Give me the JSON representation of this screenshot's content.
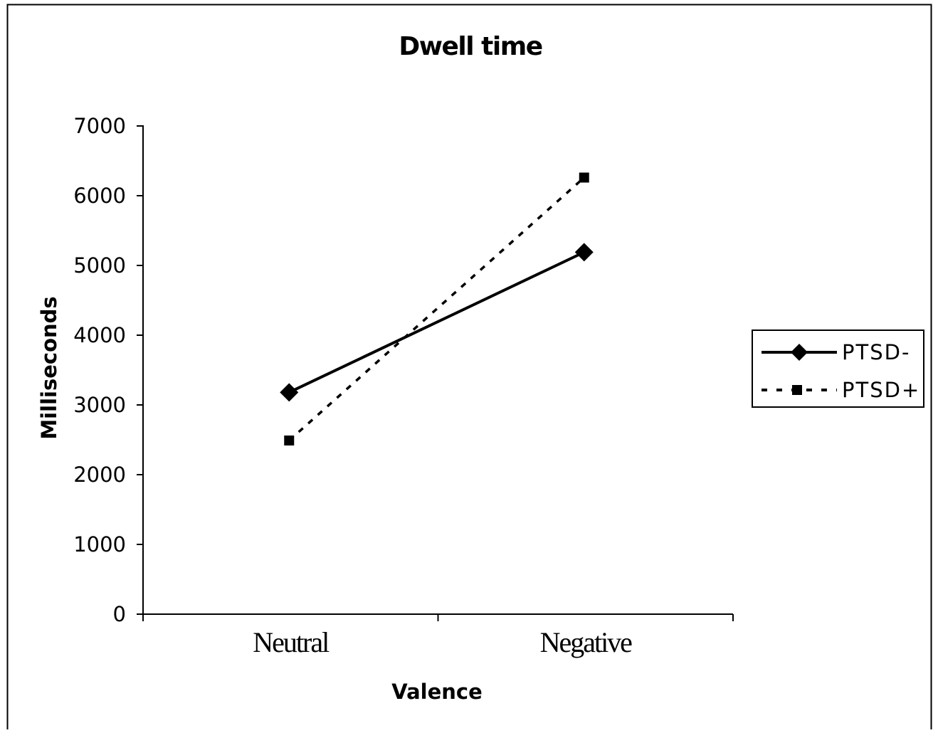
{
  "chart_data": {
    "type": "line",
    "title": "Dwell time",
    "xlabel": "Valence",
    "ylabel": "Milliseconds",
    "categories": [
      "Neutral",
      "Negative"
    ],
    "ylim": [
      0,
      7000
    ],
    "yticks": [
      "0",
      "1000",
      "2000",
      "3000",
      "4000",
      "5000",
      "6000",
      "7000"
    ],
    "grid": false,
    "legend_position": "right",
    "series": [
      {
        "name": "PTSD-",
        "values": [
          3180,
          5190
        ],
        "marker": "diamond",
        "line_style": "solid",
        "color": "#000000"
      },
      {
        "name": "PTSD+",
        "values": [
          2490,
          6260
        ],
        "marker": "square",
        "line_style": "dashed",
        "color": "#000000"
      }
    ]
  }
}
